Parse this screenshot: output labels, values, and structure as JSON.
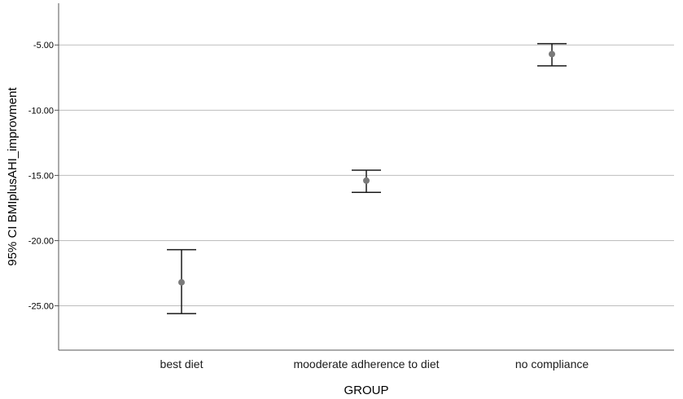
{
  "chart_data": {
    "type": "errorbar",
    "xlabel": "GROUP",
    "ylabel": "95% CI BMIplusAHI_improvment",
    "categories": [
      "best diet",
      "mooderate adherence to diet",
      "no compliance"
    ],
    "means": [
      -23.2,
      -15.4,
      -5.7
    ],
    "lower": [
      -25.6,
      -16.3,
      -6.6
    ],
    "upper": [
      -20.7,
      -14.6,
      -4.9
    ],
    "ylim": [
      -28.4,
      -1.8
    ],
    "yticks": [
      -25.0,
      -20.0,
      -15.0,
      -10.0,
      -5.0
    ],
    "ytick_labels": [
      "-25.00",
      "-20.00",
      "-15.00",
      "-10.00",
      "-5.00"
    ],
    "grid": "horizontal",
    "colors": {
      "gridline": "#bdbdbd",
      "errorbar": "#1a1a1a",
      "marker": "#7a7a7a",
      "axis": "#555555"
    }
  }
}
